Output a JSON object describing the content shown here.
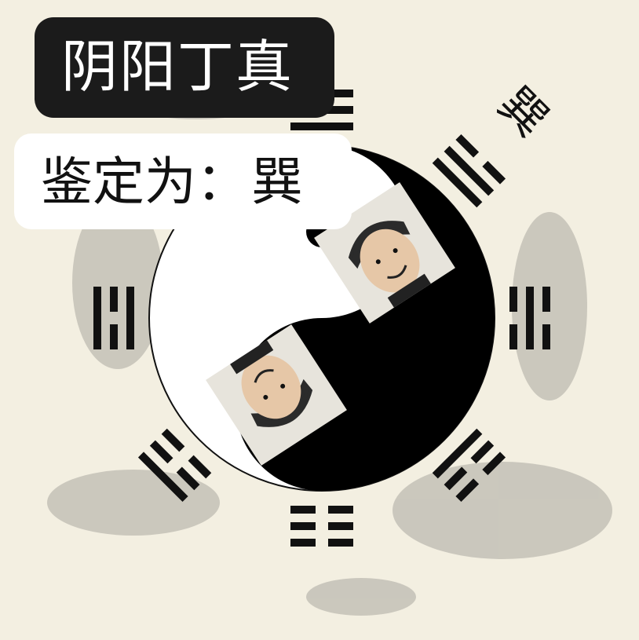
{
  "title": "阴阳丁真",
  "verdict": {
    "label": "鉴定为：",
    "value": "巽"
  },
  "trigram_character": "巽",
  "trigrams": [
    "☰",
    "☴",
    "☵",
    "☶",
    "☷",
    "☳",
    "☲",
    "☱"
  ],
  "colors": {
    "background": "#f3efe1",
    "ink": "#111111",
    "yin": "#000000",
    "yang": "#ffffff",
    "banner": "#1b1b1b"
  }
}
